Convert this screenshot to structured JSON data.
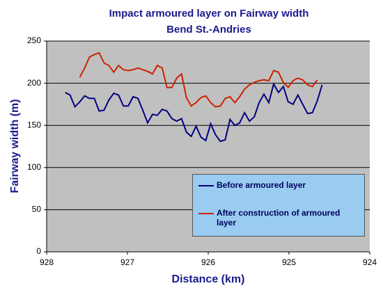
{
  "chart_data": {
    "type": "line",
    "title": "Impact armoured layer on Fairway width",
    "subtitle": "Bend St.-Andries",
    "x_label": "Distance (km)",
    "y_label": "Fairway width (m)",
    "xlim": [
      928,
      924
    ],
    "xticks": [
      928,
      927,
      926,
      925,
      924
    ],
    "ylim": [
      0,
      250
    ],
    "yticks": [
      0,
      50,
      100,
      150,
      200,
      250
    ],
    "grid": true,
    "series": [
      {
        "name": "Before armoured layer",
        "color": "#000080",
        "x": [
          927.77,
          927.71,
          927.65,
          927.59,
          927.53,
          927.47,
          927.41,
          927.35,
          927.29,
          927.23,
          927.17,
          927.11,
          927.05,
          926.99,
          926.93,
          926.87,
          926.81,
          926.75,
          926.69,
          926.63,
          926.57,
          926.51,
          926.45,
          926.39,
          926.33,
          926.27,
          926.21,
          926.15,
          926.09,
          926.03,
          925.97,
          925.91,
          925.85,
          925.79,
          925.73,
          925.67,
          925.61,
          925.55,
          925.49,
          925.43,
          925.37,
          925.31,
          925.25,
          925.19,
          925.13,
          925.07,
          925.01,
          924.95,
          924.89,
          924.83,
          924.77,
          924.71,
          924.65,
          924.59
        ],
        "values": [
          189,
          186,
          172,
          178,
          185,
          182,
          182,
          167,
          168,
          180,
          188,
          186,
          173,
          173,
          184,
          182,
          168,
          153,
          163,
          162,
          169,
          167,
          158,
          155,
          158,
          142,
          137,
          149,
          136,
          132,
          152,
          139,
          131,
          133,
          157,
          150,
          153,
          165,
          155,
          160,
          177,
          187,
          177,
          199,
          189,
          196,
          178,
          175,
          186,
          175,
          164,
          165,
          179,
          198
        ]
      },
      {
        "name": "After construction of armoured layer",
        "color": "#cc2200",
        "x": [
          927.59,
          927.53,
          927.47,
          927.41,
          927.35,
          927.29,
          927.23,
          927.17,
          927.11,
          927.05,
          926.99,
          926.93,
          926.87,
          926.81,
          926.75,
          926.69,
          926.63,
          926.57,
          926.51,
          926.45,
          926.39,
          926.33,
          926.27,
          926.21,
          926.15,
          926.09,
          926.03,
          925.97,
          925.91,
          925.85,
          925.79,
          925.73,
          925.67,
          925.61,
          925.55,
          925.49,
          925.43,
          925.37,
          925.31,
          925.25,
          925.19,
          925.13,
          925.07,
          925.01,
          924.95,
          924.89,
          924.83,
          924.77,
          924.71,
          924.65
        ],
        "values": [
          207,
          218,
          231,
          234,
          236,
          224,
          221,
          213,
          221,
          216,
          215,
          216,
          218,
          216,
          214,
          211,
          221,
          218,
          195,
          195,
          206,
          211,
          183,
          173,
          177,
          183,
          185,
          177,
          172,
          173,
          182,
          184,
          177,
          184,
          193,
          198,
          201,
          203,
          204,
          203,
          215,
          213,
          201,
          195,
          203,
          206,
          204,
          198,
          196,
          204
        ]
      }
    ]
  }
}
